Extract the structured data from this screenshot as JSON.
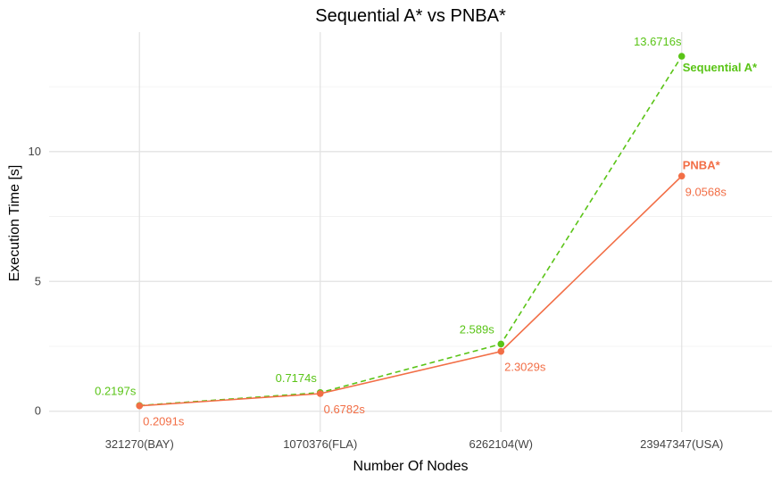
{
  "chart_data": {
    "type": "line",
    "title": "Sequential A* vs PNBA*",
    "xlabel": "Number Of Nodes",
    "ylabel": "Execution Time [s]",
    "categories": [
      "321270(BAY)",
      "1070376(FLA)",
      "6262104(W)",
      "23947347(USA)"
    ],
    "y_ticks": [
      0,
      5,
      10
    ],
    "ylim": [
      -0.8,
      14.6
    ],
    "grid": true,
    "legend": "none (series labels placed at line ends)",
    "series": [
      {
        "name": "Sequential A*",
        "color": "#5ac417",
        "line_style": "dashed",
        "values": [
          0.2197,
          0.7174,
          2.589,
          13.6716
        ],
        "labels": [
          "0.2197s",
          "0.7174s",
          "2.589s",
          "13.6716s"
        ]
      },
      {
        "name": "PNBA*",
        "color": "#f26e46",
        "line_style": "solid",
        "values": [
          0.2091,
          0.6782,
          2.3029,
          9.0568
        ],
        "labels": [
          "0.2091s",
          "0.6782s",
          "2.3029s",
          "9.0568s"
        ]
      }
    ]
  }
}
